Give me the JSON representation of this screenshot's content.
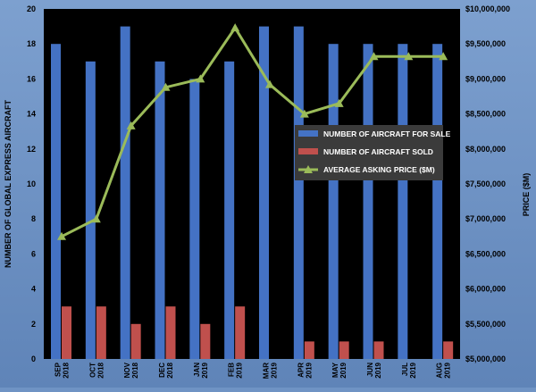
{
  "chart_data": {
    "type": "bar",
    "categories": [
      [
        "SEP",
        "2018"
      ],
      [
        "OCT",
        "2018"
      ],
      [
        "NOV",
        "2018"
      ],
      [
        "DEC",
        "2018"
      ],
      [
        "JAN",
        "2019"
      ],
      [
        "FEB",
        "2019"
      ],
      [
        "MAR",
        "2019"
      ],
      [
        "APR",
        "2019"
      ],
      [
        "MAY",
        "2019"
      ],
      [
        "JUN",
        "2019"
      ],
      [
        "JUL",
        "2019"
      ],
      [
        "AUG",
        "2019"
      ]
    ],
    "series": [
      {
        "name": "NUMBER OF AIRCRAFT FOR SALE",
        "type": "bar",
        "axis": "left",
        "color": "#4472c4",
        "values": [
          18,
          17,
          19,
          17,
          16,
          17,
          19,
          19,
          18,
          18,
          18,
          18
        ]
      },
      {
        "name": "NUMBER OF AIRCRAFT SOLD",
        "type": "bar",
        "axis": "left",
        "color": "#c0504d",
        "values": [
          3,
          3,
          2,
          3,
          2,
          3,
          0,
          1,
          1,
          1,
          0,
          1
        ]
      },
      {
        "name": "AVERAGE ASKING PRICE ($M)",
        "type": "line",
        "axis": "right",
        "color": "#9bbb59",
        "values": [
          6750000,
          7000000,
          8330000,
          8880000,
          9000000,
          9730000,
          8920000,
          8500000,
          8650000,
          9320000,
          9320000,
          9320000
        ]
      }
    ],
    "ylabel": "NUMBER OF GLOBAL EXPRESS AIRCRAFT",
    "y2label": "PRICE ($M)",
    "ylim": [
      0,
      20
    ],
    "y2lim": [
      5000000,
      10000000
    ],
    "yticks": [
      "0",
      "2",
      "4",
      "6",
      "8",
      "10",
      "12",
      "14",
      "16",
      "18",
      "20"
    ],
    "y2ticks": [
      "$5,000,000",
      "$5,500,000",
      "$6,000,000",
      "$6,500,000",
      "$7,000,000",
      "$7,500,000",
      "$8,000,000",
      "$8,500,000",
      "$9,000,000",
      "$9,500,000",
      "$10,000,000"
    ],
    "legend_position": "right-middle",
    "grid": false,
    "plot_background": "#000000"
  }
}
